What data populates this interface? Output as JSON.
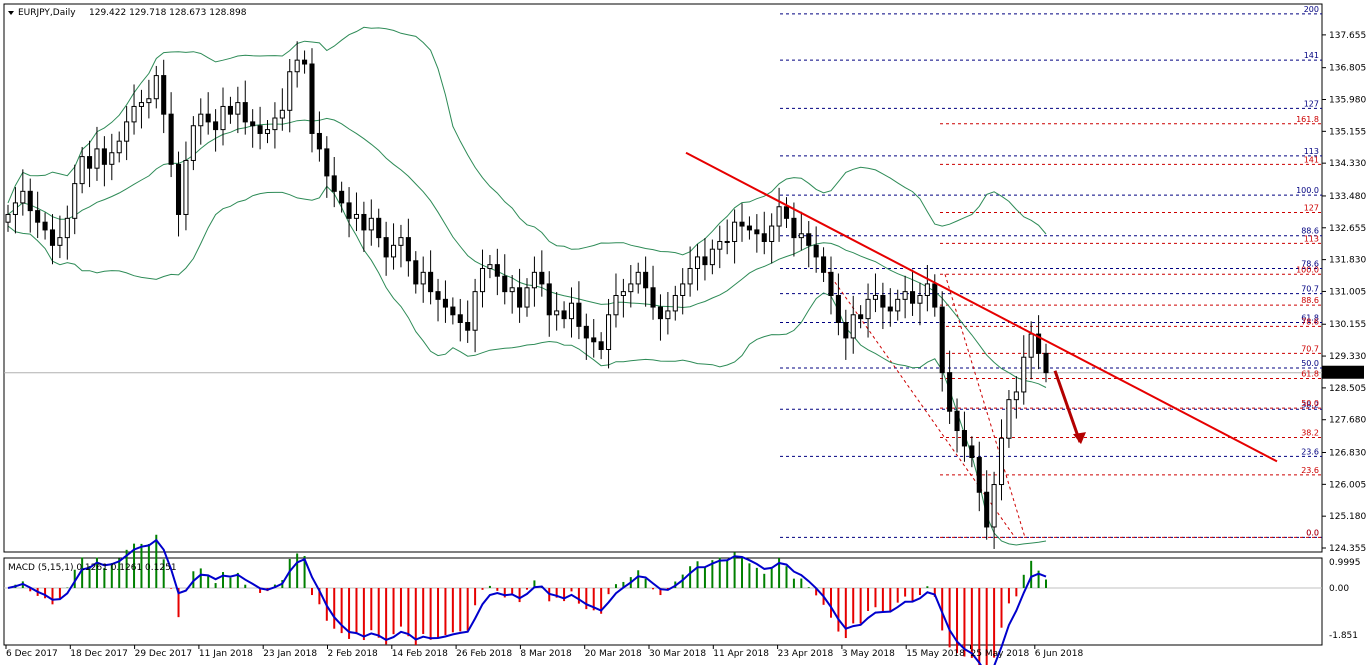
{
  "header": {
    "symbol_label": "EURJPY,Daily",
    "ohlc_label": "129.422 129.718 128.673 128.898"
  },
  "macd_panel": {
    "label": "MACD (5,15,1) 0.1261 0.1261 0.1251",
    "y_ticks": [
      "0.9995",
      "0.00",
      "-1.851"
    ]
  },
  "price_axis": {
    "tick_labels": [
      "137.655",
      "136.805",
      "135.980",
      "135.155",
      "134.330",
      "133.480",
      "132.655",
      "131.830",
      "131.005",
      "130.155",
      "129.330",
      "128.505",
      "127.680",
      "126.830",
      "126.005",
      "125.180",
      "124.355"
    ],
    "current_price": "128.898"
  },
  "date_labels": [
    "6 Dec 2017",
    "18 Dec 2017",
    "29 Dec 2017",
    "11 Jan 2018",
    "23 Jan 2018",
    "2 Feb 2018",
    "14 Feb 2018",
    "26 Feb 2018",
    "8 Mar 2018",
    "20 Mar 2018",
    "30 Mar 2018",
    "11 Apr 2018",
    "23 Apr 2018",
    "3 May 2018",
    "15 May 2018",
    "25 May 2018",
    "6 Jun 2018"
  ],
  "fibo_blue": [
    {
      "label": "200",
      "price": 138.2
    },
    {
      "label": "141",
      "price": 137.0
    },
    {
      "label": "127",
      "price": 135.75
    },
    {
      "label": "113",
      "price": 134.52
    },
    {
      "label": "100.0",
      "price": 133.5
    },
    {
      "label": "88.6",
      "price": 132.45
    },
    {
      "label": "78.6",
      "price": 131.6
    },
    {
      "label": "70.7",
      "price": 130.95
    },
    {
      "label": "61.8",
      "price": 130.2
    },
    {
      "label": "50.0",
      "price": 129.02
    },
    {
      "label": "38.2",
      "price": 127.95
    },
    {
      "label": "23.6",
      "price": 126.73
    },
    {
      "label": "0.0",
      "price": 124.63
    }
  ],
  "fibo_red": [
    {
      "label": "161.8",
      "price": 135.35
    },
    {
      "label": "141",
      "price": 134.3
    },
    {
      "label": "127",
      "price": 133.05
    },
    {
      "label": "113",
      "price": 132.25
    },
    {
      "label": "100.0",
      "price": 131.45
    },
    {
      "label": "88.6",
      "price": 130.65
    },
    {
      "label": "78.6",
      "price": 130.1
    },
    {
      "label": "70.7",
      "price": 129.4
    },
    {
      "label": "61.8",
      "price": 128.75
    },
    {
      "label": "50.0",
      "price": 127.98
    },
    {
      "label": "38.2",
      "price": 127.22
    },
    {
      "label": "23.6",
      "price": 126.25
    },
    {
      "label": "0.0",
      "price": 124.63
    }
  ],
  "colors": {
    "bull_candle": "#ffffff",
    "bear_candle": "#000000",
    "bollinger": "#2e8b57",
    "trendline": "#e60000",
    "fibo_blue": "#000080",
    "fibo_red": "#cc0000",
    "macd_positive": "#008000",
    "macd_negative": "#e60000",
    "macd_signal": "#0000cc",
    "arrow": "#b30000"
  },
  "chart_data": {
    "type": "candlestick",
    "symbol": "EURJPY",
    "timeframe": "Daily",
    "ylim": [
      124.355,
      138.3
    ],
    "trendline": [
      {
        "date_index": 0,
        "price": 134.6
      },
      {
        "date_index": 1,
        "price": 126.6
      }
    ],
    "forecast_arrow": {
      "from_price": 128.95,
      "to_price": 127.1
    },
    "closes": [
      133.0,
      133.3,
      133.6,
      133.1,
      132.8,
      132.6,
      132.2,
      132.4,
      132.9,
      133.8,
      134.5,
      134.2,
      134.7,
      134.3,
      134.6,
      134.9,
      135.4,
      135.8,
      135.9,
      136.0,
      136.6,
      135.6,
      134.3,
      133.0,
      134.4,
      135.3,
      135.6,
      135.4,
      135.2,
      135.8,
      135.6,
      135.9,
      135.4,
      135.3,
      135.1,
      135.2,
      135.5,
      135.7,
      136.7,
      137.0,
      136.9,
      135.1,
      134.7,
      134.0,
      133.6,
      133.3,
      132.9,
      133.0,
      132.6,
      132.9,
      132.4,
      131.9,
      132.2,
      132.4,
      131.8,
      131.2,
      131.5,
      131.0,
      130.8,
      130.6,
      130.4,
      130.2,
      130.0,
      131.0,
      131.6,
      131.7,
      131.4,
      131.0,
      131.1,
      130.6,
      131.1,
      131.5,
      131.2,
      130.4,
      130.5,
      130.3,
      130.7,
      130.1,
      129.8,
      129.7,
      129.5,
      130.4,
      130.9,
      131.0,
      131.2,
      131.5,
      131.1,
      130.6,
      130.3,
      130.5,
      130.9,
      131.2,
      131.6,
      131.9,
      131.7,
      132.1,
      132.3,
      132.3,
      132.8,
      132.7,
      132.6,
      132.5,
      132.3,
      132.7,
      133.2,
      132.9,
      132.4,
      132.5,
      132.2,
      131.9,
      131.5,
      130.9,
      130.2,
      129.8,
      130.4,
      130.3,
      130.8,
      130.9,
      130.6,
      130.5,
      130.8,
      131.0,
      130.7,
      130.9,
      131.2,
      130.6,
      128.9,
      127.9,
      127.4,
      127.0,
      126.7,
      125.8,
      124.9,
      126.0,
      127.2,
      128.2,
      128.4,
      129.3,
      129.9,
      129.4,
      128.9
    ],
    "note_free": ""
  }
}
